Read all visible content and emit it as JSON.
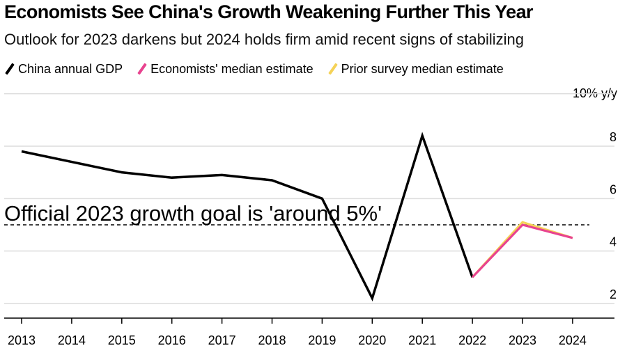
{
  "title": "Economists See China's Growth Weakening Further This Year",
  "subtitle": "Outlook for 2023 darkens but 2024 holds firm amid recent signs of stabilizing",
  "legend": [
    {
      "label": "China annual GDP",
      "color": "#000000"
    },
    {
      "label": "Economists' median estimate",
      "color": "#e8438f"
    },
    {
      "label": "Prior survey median estimate",
      "color": "#f5d257"
    }
  ],
  "unit_label": "10% y/y",
  "chart_data": {
    "type": "line",
    "title": "Economists See China's Growth Weakening Further This Year",
    "ylabel": "% y/y",
    "ylim": [
      1.7,
      10
    ],
    "yticks": [
      2,
      4,
      6,
      8,
      10
    ],
    "ytick_labels": [
      "2",
      "4",
      "6",
      "8",
      "10% y/y"
    ],
    "categories": [
      "2013",
      "2014",
      "2015",
      "2016",
      "2017",
      "2018",
      "2019",
      "2020",
      "2021",
      "2022",
      "2023",
      "2024"
    ],
    "series": [
      {
        "name": "China annual GDP",
        "color": "#000000",
        "x": [
          "2013",
          "2014",
          "2015",
          "2016",
          "2017",
          "2018",
          "2019",
          "2020",
          "2021",
          "2022"
        ],
        "values": [
          7.8,
          7.4,
          7.0,
          6.8,
          6.9,
          6.7,
          6.0,
          2.2,
          8.4,
          3.0
        ]
      },
      {
        "name": "Prior survey median estimate",
        "color": "#f5d257",
        "x": [
          "2022",
          "2023",
          "2024"
        ],
        "values": [
          3.0,
          5.1,
          4.5
        ]
      },
      {
        "name": "Economists' median estimate",
        "color": "#e8438f",
        "x": [
          "2022",
          "2023",
          "2024"
        ],
        "values": [
          3.0,
          5.0,
          4.5
        ]
      }
    ],
    "reference_line": {
      "value": 5.0,
      "label": "Official 2023 growth goal is 'around 5%'"
    }
  }
}
